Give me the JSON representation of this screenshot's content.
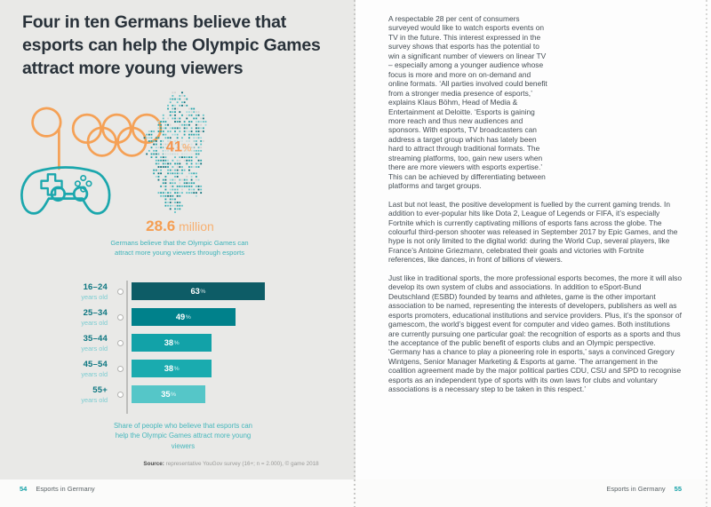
{
  "spread": {
    "left_page": {
      "title": "Four in ten Germans believe that esports can help the Olympic Games attract more young viewers",
      "infographic": {
        "percent_callout_value": "41",
        "percent_callout_sign": "%",
        "stat_number": "28.6",
        "stat_unit": " million",
        "stat_caption": "Germans believe that the Olympic Games can attract more young viewers through esports"
      },
      "chart_caption": "Share of people who believe that esports can help the Olympic Games attract more young viewers",
      "source_label": "Source:",
      "source_text": " representative YouGov survey (16+; n = 2.000), © game 2018",
      "footer": {
        "page_number": "54",
        "section": "Esports in Germany"
      }
    },
    "right_page": {
      "paragraphs": [
        "A respectable 28 per cent of consumers surveyed would like to watch esports events on TV in the future. This interest expressed in the survey shows that esports has the potential to win a significant number of viewers on linear TV – especially among a younger audience whose focus is more and more on on-demand and online formats. ‘All parties involved could benefit from a stronger media presence of esports,’ explains Klaus Böhm, Head of Media & Entertainment at Deloitte. ‘Esports is gaining more reach and thus new audiences and sponsors. With esports, TV broadcasters can address a target group which has lately been hard to attract through traditional formats. The streaming platforms, too, gain new users when there are more viewers with esports expertise.’ This can be achieved by differentiating between platforms and target groups.",
        "Last but not least, the positive development is fuelled by the current gaming trends. In addition to ever-popular hits like Dota 2, League of Legends or FIFA, it’s especially Fortnite which is currently captivating millions of esports fans across the globe. The colourful third-person shooter was released in September 2017 by Epic Games, and the hype is not only limited to the digital world: during the World Cup, several players, like France’s Antoine Griezmann, celebrated their goals and victories with Fortnite references, like dances, in front of billions of viewers.",
        "Just like in traditional sports, the more professional esports becomes, the more it will also develop its own system of clubs and associations. In addition to eSport-Bund Deutschland (ESBD) founded by teams and athletes, game is the other important association to be named, representing the interests of developers, publishers as well as esports promoters, educational institutions and service providers. Plus, it’s the sponsor of gamescom, the world’s biggest event for computer and video games. Both institutions are currently pursuing one particular goal: the recognition of esports as a sports and thus the acceptance of the public benefit of esports clubs and an Olympic perspective. ‘Germany has a chance to play a pioneering role in esports,’ says a convinced Gregory Wintgens, Senior Manager Marketing & Esports at game. ‘The arrangement in the coalition agreement made by the major political parties CDU, CSU and SPD to recognise esports as an independent type of sports with its own laws for clubs and voluntary associations is a necessary step to be taken in this respect.’"
      ],
      "footer": {
        "section": "Esports in Germany",
        "page_number": "55"
      }
    }
  },
  "chart_data": {
    "type": "bar",
    "orientation": "horizontal",
    "title": "Share of people who believe that esports can help the Olympic Games attract more young viewers",
    "unit": "%",
    "categories": [
      "16–24 years old",
      "25–34 years old",
      "35–44 years old",
      "45–54 years old",
      "55+ years old"
    ],
    "category_lines": [
      [
        "16–24",
        "years old"
      ],
      [
        "25–34",
        "years old"
      ],
      [
        "35–44",
        "years old"
      ],
      [
        "45–54",
        "years old"
      ],
      [
        "55+",
        "years old"
      ]
    ],
    "values": [
      63,
      49,
      38,
      38,
      35
    ],
    "bar_colors": [
      "#0d5c66",
      "#00818b",
      "#12a2a8",
      "#1aabaf",
      "#55c6c8"
    ],
    "value_label_position": "inside",
    "xlim": [
      0,
      100
    ],
    "grid": false,
    "legend": "none",
    "source": "Source: representative YouGov survey (16+; n = 2.000), © game 2018"
  },
  "icons": {
    "game_controller": "teal outlined gamepad with d-pad, four buttons, two sticks",
    "olympic_rings": "five interlocking orange rings with cable loop",
    "germany_map": "map of Germany built from small teal squares"
  },
  "colors": {
    "accent_teal": "#1ba7ad",
    "dark_teal": "#0d7680",
    "accent_orange": "#f5a156",
    "left_page_bg": "#e9e9e7",
    "right_page_bg": "#fdfdfd",
    "title_text": "#29323a",
    "body_text": "#454e55"
  }
}
